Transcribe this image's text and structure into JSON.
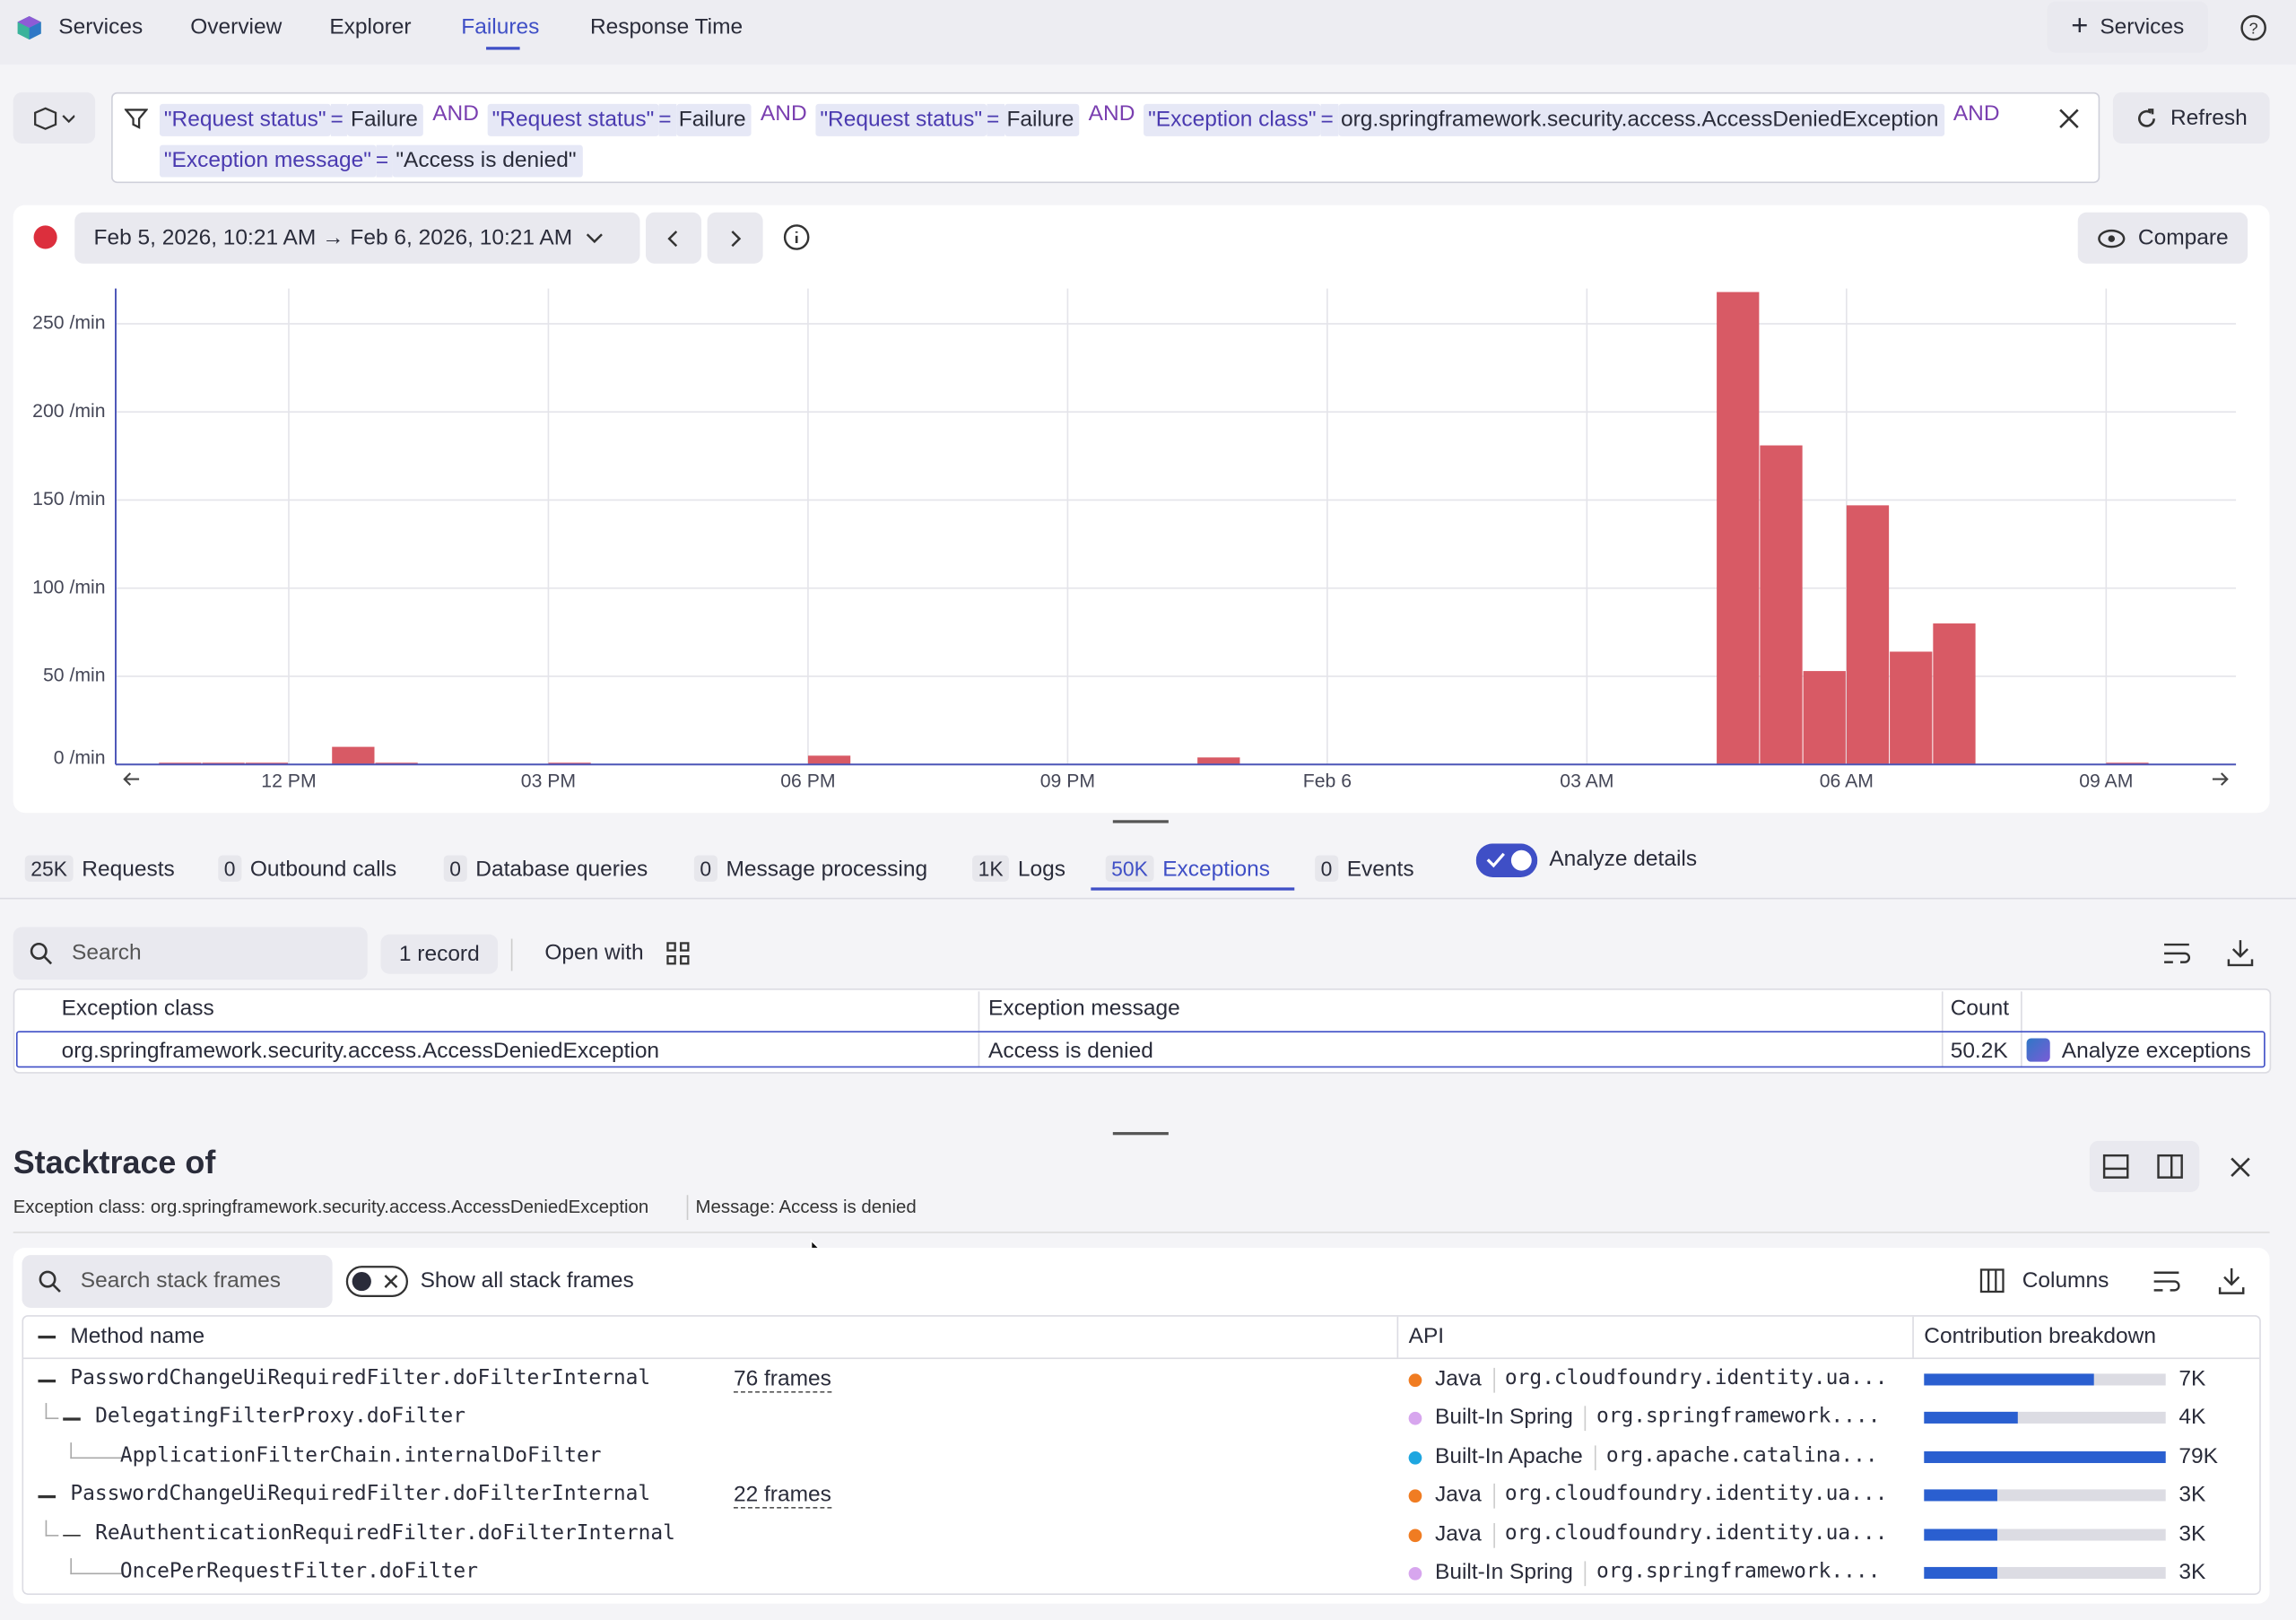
{
  "nav": {
    "app": "Services",
    "tabs": [
      "Overview",
      "Explorer",
      "Failures",
      "Response Time"
    ],
    "active_tab": 2,
    "add_button": "Services"
  },
  "filter": {
    "join": "AND",
    "tokens": [
      {
        "key": "\"Request status\"",
        "op": "=",
        "value": "Failure"
      },
      {
        "key": "\"Request status\"",
        "op": "=",
        "value": "Failure"
      },
      {
        "key": "\"Request status\"",
        "op": "=",
        "value": "Failure"
      },
      {
        "key": "\"Exception class\"",
        "op": "=",
        "value": "org.springframework.security.access.AccessDeniedException"
      },
      {
        "key": "\"Exception message\"",
        "op": "=",
        "value": "\"Access is denied\""
      }
    ]
  },
  "refresh": "Refresh",
  "date_range": "Feb 5, 2026, 10:21 AM → Feb 6, 2026, 10:21 AM",
  "compare": "Compare",
  "chart_data": {
    "type": "bar",
    "color": "#d85a65",
    "x": [
      10.5,
      11,
      11.5,
      12.5,
      13,
      15,
      18,
      22.5,
      28.5,
      29,
      29.5,
      30,
      30.5,
      31,
      33
    ],
    "values": [
      1,
      1,
      1,
      10,
      1,
      1,
      5,
      4,
      268,
      181,
      53,
      147,
      64,
      80,
      1
    ],
    "xlim": [
      10,
      34.5
    ],
    "xticks": [
      {
        "value": 12,
        "label": "12 PM"
      },
      {
        "value": 15,
        "label": "03 PM"
      },
      {
        "value": 18,
        "label": "06 PM"
      },
      {
        "value": 21,
        "label": "09 PM"
      },
      {
        "value": 24,
        "label": "Feb 6"
      },
      {
        "value": 27,
        "label": "03 AM"
      },
      {
        "value": 30,
        "label": "06 AM"
      },
      {
        "value": 33,
        "label": "09 AM"
      }
    ],
    "ylim": [
      0,
      270
    ],
    "yticks": [
      {
        "value": 0,
        "label": "0 /min"
      },
      {
        "value": 50,
        "label": "50 /min"
      },
      {
        "value": 100,
        "label": "100 /min"
      },
      {
        "value": 150,
        "label": "150 /min"
      },
      {
        "value": 200,
        "label": "200 /min"
      },
      {
        "value": 250,
        "label": "250 /min"
      }
    ],
    "grid": true
  },
  "tabs": [
    {
      "count": "25K",
      "label": "Requests"
    },
    {
      "count": "0",
      "label": "Outbound calls"
    },
    {
      "count": "0",
      "label": "Database queries"
    },
    {
      "count": "0",
      "label": "Message processing"
    },
    {
      "count": "1K",
      "label": "Logs"
    },
    {
      "count": "50K",
      "label": "Exceptions"
    },
    {
      "count": "0",
      "label": "Events"
    }
  ],
  "active_detail_tab": 5,
  "analyze_toggle": "Analyze details",
  "search_placeholder": "Search",
  "records": "1 record",
  "open_with": "Open with",
  "table": {
    "columns": [
      "Exception class",
      "Exception message",
      "Count"
    ],
    "rows": [
      [
        "org.springframework.security.access.AccessDeniedException",
        "Access is denied",
        "50.2K"
      ]
    ],
    "action": "Analyze exceptions"
  },
  "stacktrace": {
    "title": "Stacktrace of",
    "class_info": "Exception class: org.springframework.security.access.AccessDeniedException",
    "message_info": "Message: Access is denied",
    "search_placeholder": "Search stack frames",
    "show_all": "Show all stack frames",
    "columns_button": "Columns",
    "columns": [
      "Method name",
      "API",
      "Contribution breakdown"
    ],
    "rows": [
      {
        "method": "PasswordChangeUiRequiredFilter.doFilterInternal",
        "frames": "76 frames",
        "api": "Java",
        "color": "#f07c22",
        "package": "org.cloudfoundry.identity.ua...",
        "share": 70,
        "count": "7K"
      },
      {
        "method": "DelegatingFilterProxy.doFilter",
        "api": "Built-In Spring",
        "color": "#d7a6ee",
        "package": "org.springframework....",
        "share": 39,
        "count": "4K"
      },
      {
        "method": "ApplicationFilterChain.internalDoFilter",
        "api": "Built-In Apache",
        "color": "#1ea6e0",
        "package": "org.apache.catalina...",
        "share": 100,
        "count": "79K"
      },
      {
        "method": "PasswordChangeUiRequiredFilter.doFilterInternal",
        "frames": "22 frames",
        "api": "Java",
        "color": "#f07c22",
        "package": "org.cloudfoundry.identity.ua...",
        "share": 30,
        "count": "3K"
      },
      {
        "method": "ReAuthenticationRequiredFilter.doFilterInternal",
        "api": "Java",
        "color": "#f07c22",
        "package": "org.cloudfoundry.identity.ua...",
        "share": 30,
        "count": "3K"
      },
      {
        "method": "OncePerRequestFilter.doFilter",
        "api": "Built-In Spring",
        "color": "#d7a6ee",
        "package": "org.springframework....",
        "share": 30,
        "count": "3K"
      }
    ]
  }
}
